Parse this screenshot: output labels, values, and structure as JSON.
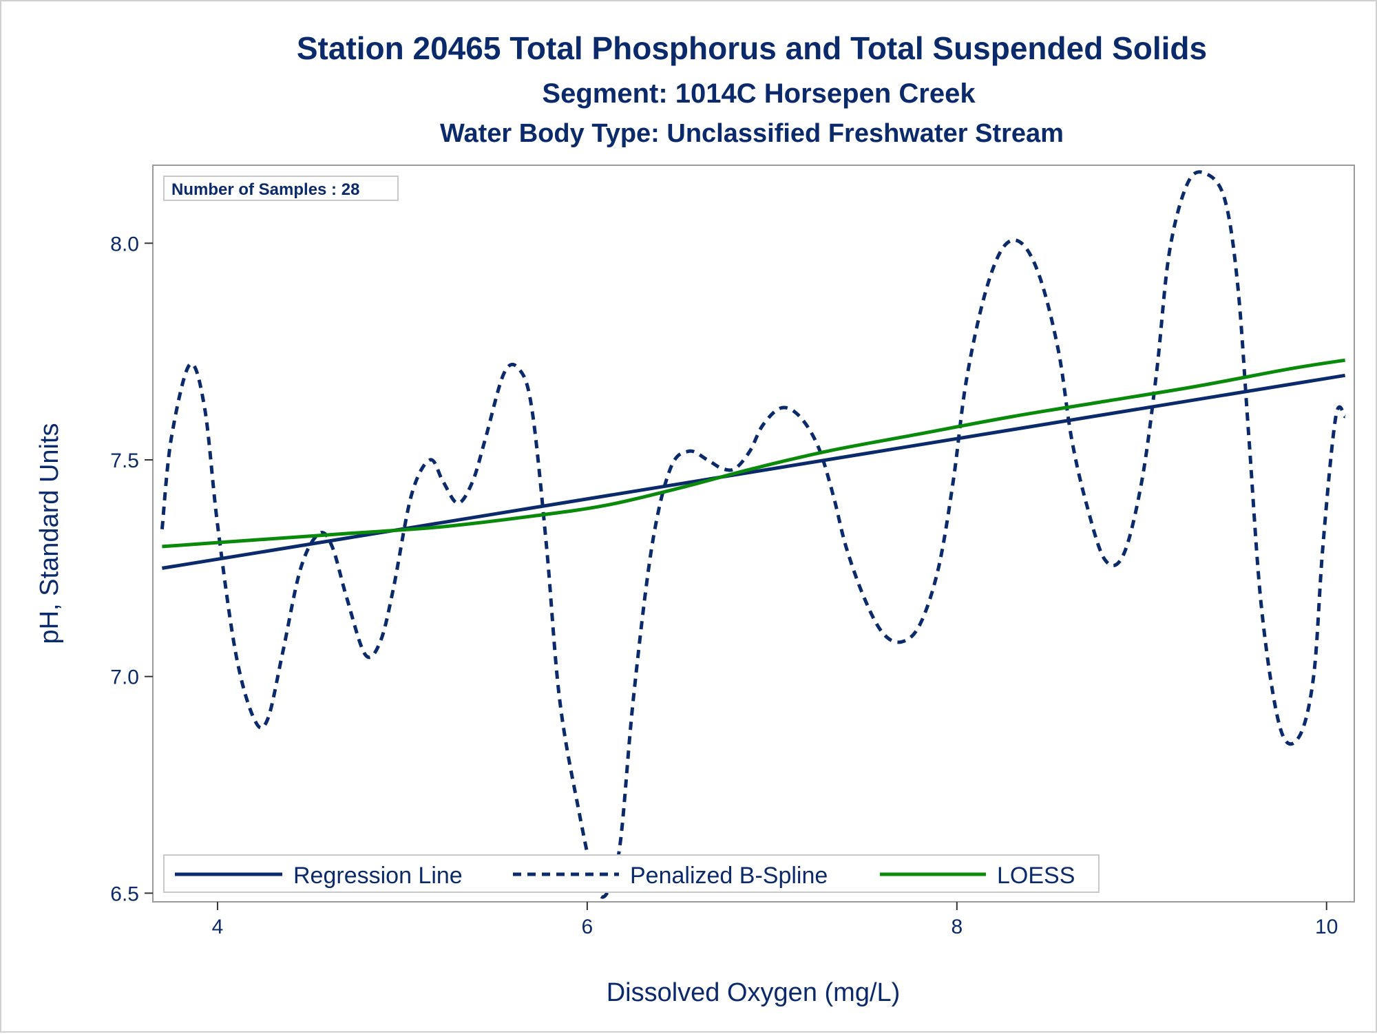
{
  "chart_data": {
    "type": "line",
    "title": "Station 20465  Total Phosphorus and Total Suspended Solids",
    "subtitle": "Segment: 1014C  Horsepen Creek",
    "subtitle2": "Water Body Type: Unclassified Freshwater Stream",
    "xlabel": "Dissolved Oxygen (mg/L)",
    "ylabel": "pH, Standard Units",
    "xlim": [
      3.65,
      10.15
    ],
    "ylim": [
      6.48,
      8.18
    ],
    "xticks": [
      4,
      6,
      8,
      10
    ],
    "yticks": [
      6.5,
      7.0,
      7.5,
      8.0
    ],
    "xtick_labels": [
      "4",
      "6",
      "8",
      "10"
    ],
    "ytick_labels": [
      "6.5",
      "7.0",
      "7.5",
      "8.0"
    ],
    "grid": false,
    "legend_placement": "bottom-left, inside",
    "annotation": "Number of Samples : 28",
    "series": [
      {
        "name": "Regression Line",
        "style": "solid",
        "color": "#0b2a6b",
        "x": [
          3.7,
          10.1
        ],
        "y": [
          7.25,
          7.695
        ]
      },
      {
        "name": "Penalized B-Spline",
        "style": "dashed",
        "color": "#0b2a6b",
        "x": [
          3.7,
          3.75,
          3.85,
          3.93,
          4.0,
          4.1,
          4.2,
          4.27,
          4.35,
          4.45,
          4.55,
          4.62,
          4.7,
          4.8,
          4.88,
          4.95,
          5.05,
          5.15,
          5.22,
          5.3,
          5.38,
          5.45,
          5.55,
          5.63,
          5.7,
          5.78,
          5.85,
          5.95,
          6.05,
          6.12,
          6.18,
          6.25,
          6.35,
          6.45,
          6.55,
          6.65,
          6.73,
          6.8,
          6.88,
          6.95,
          7.05,
          7.15,
          7.25,
          7.33,
          7.4,
          7.5,
          7.6,
          7.7,
          7.8,
          7.9,
          7.98,
          8.05,
          8.15,
          8.25,
          8.35,
          8.45,
          8.55,
          8.62,
          8.7,
          8.8,
          8.9,
          9.0,
          9.08,
          9.15,
          9.25,
          9.35,
          9.45,
          9.52,
          9.58,
          9.65,
          9.75,
          9.85,
          9.93,
          9.98,
          10.05,
          10.1
        ],
        "y": [
          7.34,
          7.55,
          7.72,
          7.62,
          7.35,
          7.05,
          6.9,
          6.9,
          7.05,
          7.25,
          7.33,
          7.3,
          7.18,
          7.05,
          7.08,
          7.2,
          7.42,
          7.5,
          7.45,
          7.4,
          7.45,
          7.55,
          7.7,
          7.71,
          7.62,
          7.3,
          6.95,
          6.7,
          6.51,
          6.51,
          6.62,
          6.95,
          7.3,
          7.48,
          7.52,
          7.5,
          7.48,
          7.48,
          7.52,
          7.58,
          7.62,
          7.6,
          7.53,
          7.42,
          7.3,
          7.18,
          7.1,
          7.08,
          7.12,
          7.25,
          7.45,
          7.68,
          7.88,
          7.99,
          8.0,
          7.92,
          7.75,
          7.55,
          7.4,
          7.27,
          7.28,
          7.45,
          7.7,
          7.98,
          8.14,
          8.16,
          8.1,
          7.9,
          7.55,
          7.15,
          6.88,
          6.86,
          7.0,
          7.3,
          7.6,
          7.6
        ]
      },
      {
        "name": "LOESS",
        "style": "solid",
        "color": "#0a8a0a",
        "x": [
          3.7,
          4.2,
          4.7,
          5.2,
          5.7,
          6.1,
          6.5,
          6.9,
          7.3,
          7.8,
          8.3,
          8.8,
          9.3,
          9.8,
          10.1
        ],
        "y": [
          7.3,
          7.315,
          7.33,
          7.345,
          7.37,
          7.395,
          7.435,
          7.48,
          7.52,
          7.56,
          7.6,
          7.635,
          7.67,
          7.71,
          7.73
        ]
      }
    ]
  }
}
